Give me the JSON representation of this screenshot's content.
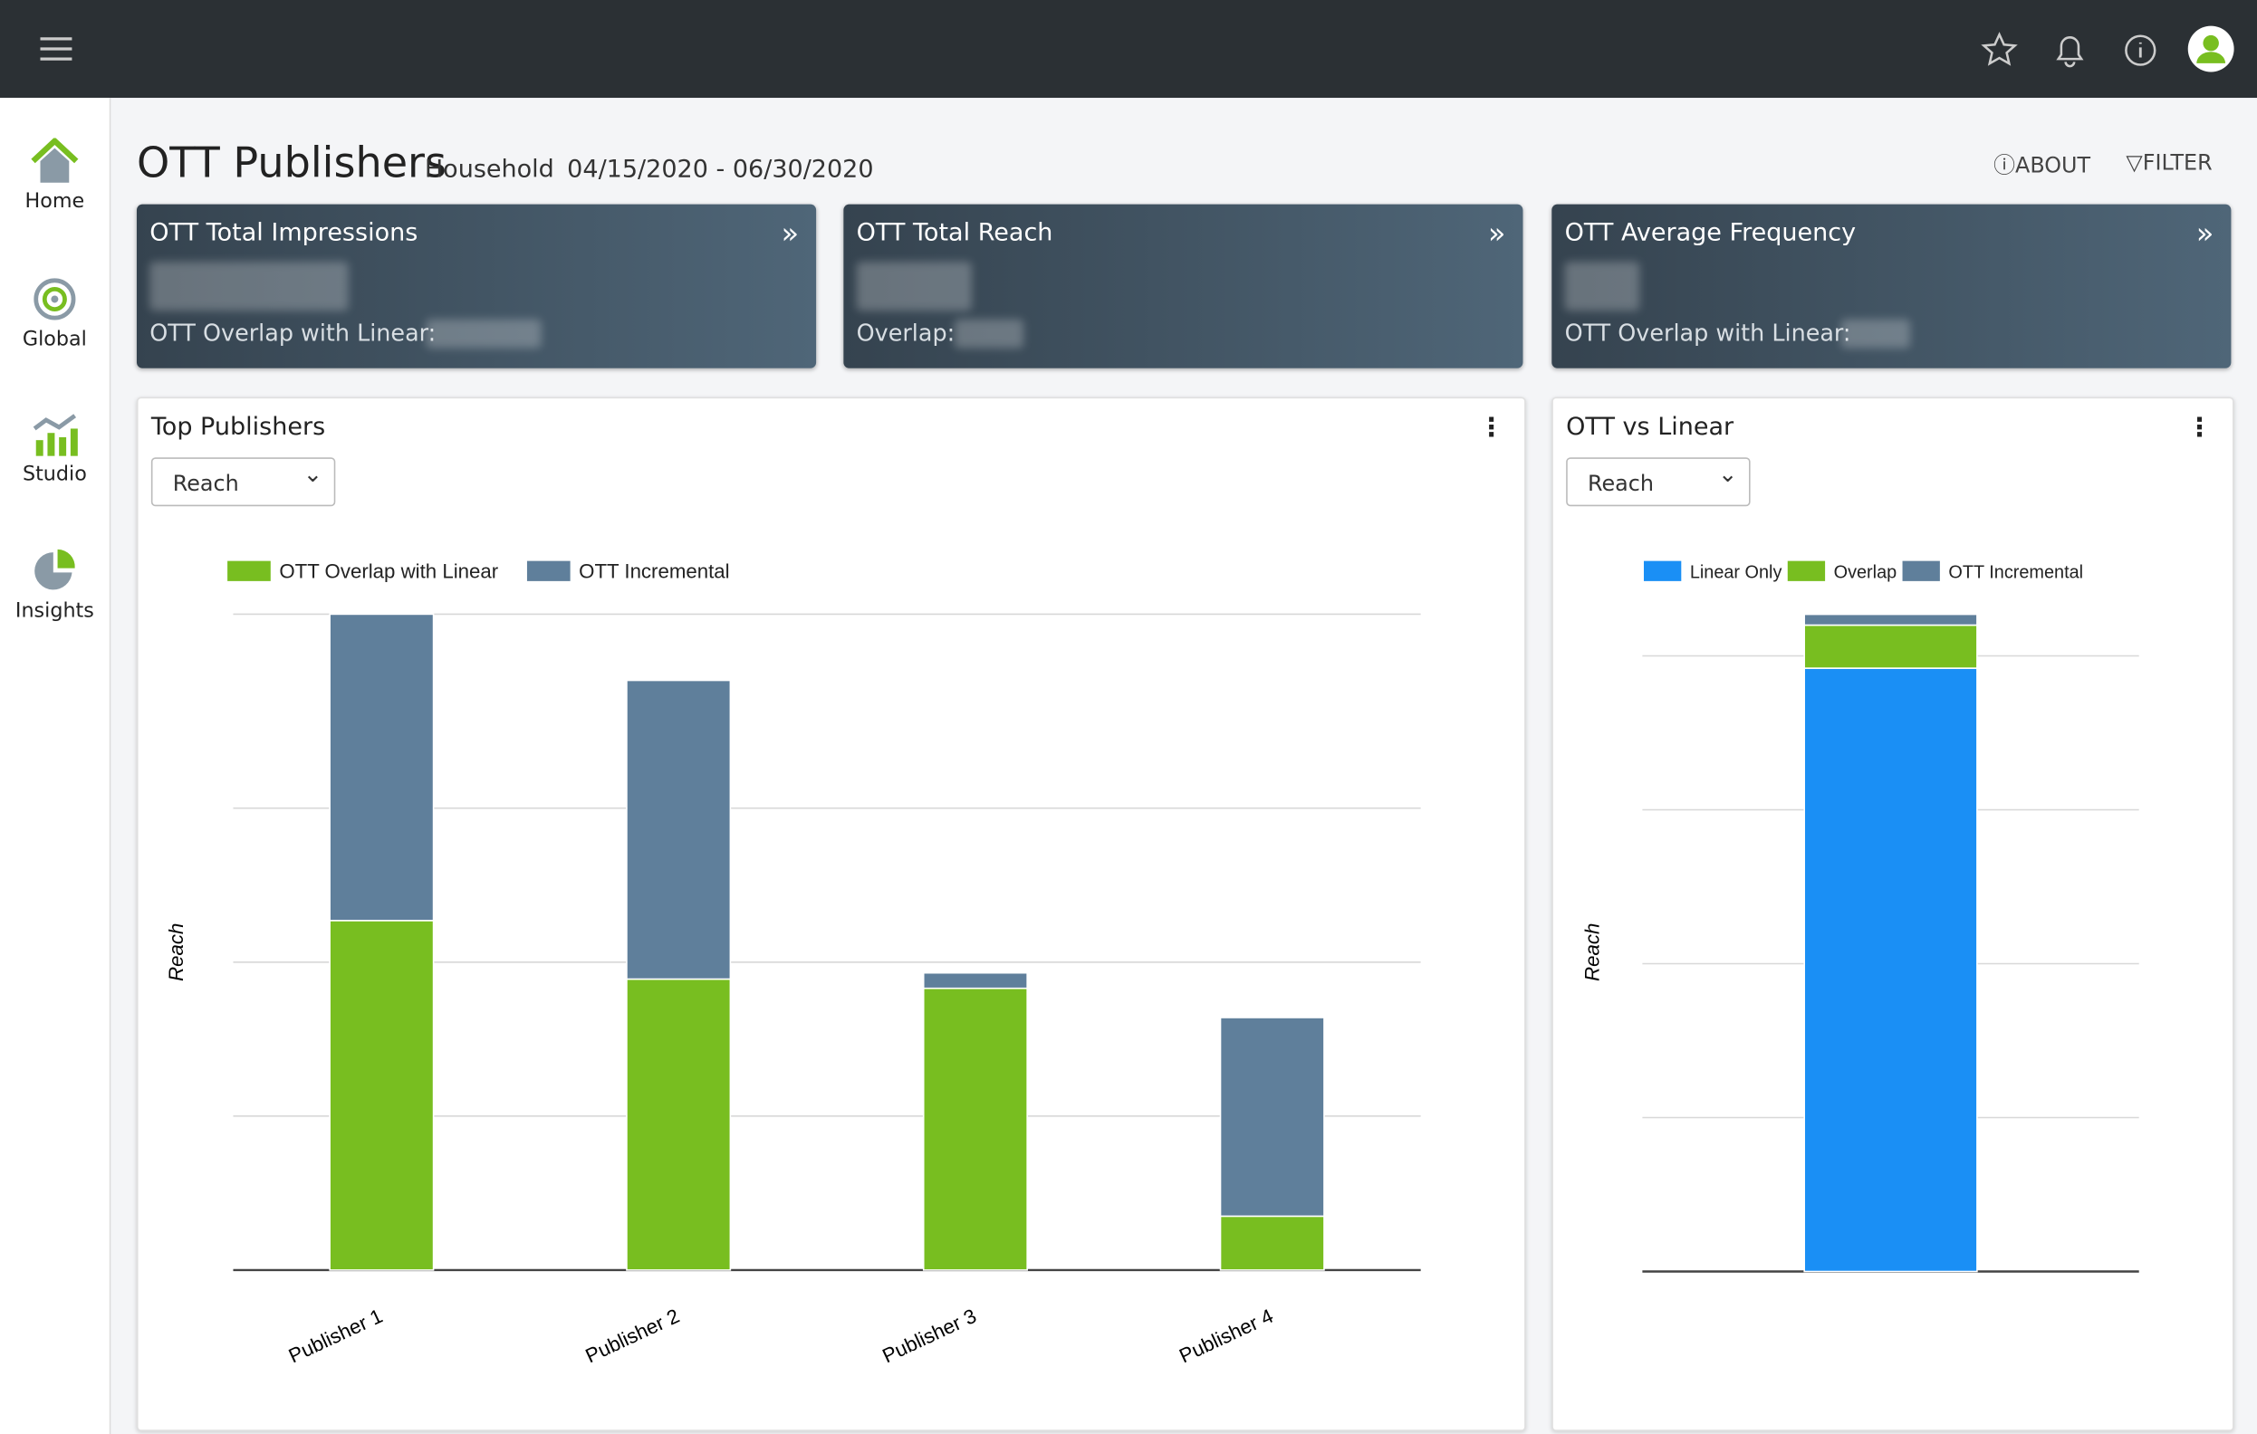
{
  "header": {
    "title": "OTT Publishers",
    "audience": "Household",
    "date_range": "04/15/2020 - 06/30/2020",
    "about": "ABOUT",
    "filter": "FILTER"
  },
  "nav": [
    "Home",
    "Global",
    "Studio",
    "Insights"
  ],
  "kpis": [
    {
      "title": "OTT Total Impressions",
      "sub": "OTT Overlap with Linear:"
    },
    {
      "title": "OTT Total Reach",
      "sub": "Overlap:"
    },
    {
      "title": "OTT Average Frequency",
      "sub": "OTT Overlap with Linear:"
    }
  ],
  "panels": [
    {
      "title": "Top Publishers",
      "select": "Reach"
    },
    {
      "title": "OTT vs Linear",
      "select": "Reach"
    }
  ],
  "chart_data": [
    {
      "type": "stacked-bar",
      "y_label": "Reach",
      "categories": [
        "Publisher 1",
        "Publisher 2",
        "Publisher 3",
        "Publisher 4"
      ],
      "series": [
        {
          "name": "OTT Overlap with Linear",
          "color": "#78be20",
          "values": [
            2.27,
            1.89,
            1.83,
            0.35
          ]
        },
        {
          "name": "OTT Incremental",
          "color": "#5f7f9b",
          "values": [
            1.99,
            1.94,
            0.1,
            1.29
          ]
        }
      ],
      "ylim": [
        0,
        4.26
      ],
      "yticks": [
        0,
        1,
        2,
        3
      ],
      "grid": true
    },
    {
      "type": "stacked-bar",
      "y_label": "Reach",
      "categories": [
        null
      ],
      "series": [
        {
          "name": "Linear Only",
          "color": "#1a8ff5",
          "values": [
            3.92
          ]
        },
        {
          "name": "Overlap",
          "color": "#78be20",
          "values": [
            0.28
          ]
        },
        {
          "name": "OTT Incremental",
          "color": "#5f7f9b",
          "values": [
            0.07
          ]
        }
      ],
      "ylim": [
        0,
        4.3
      ],
      "yticks": [
        0,
        1,
        2,
        3,
        4
      ],
      "grid": true
    }
  ]
}
